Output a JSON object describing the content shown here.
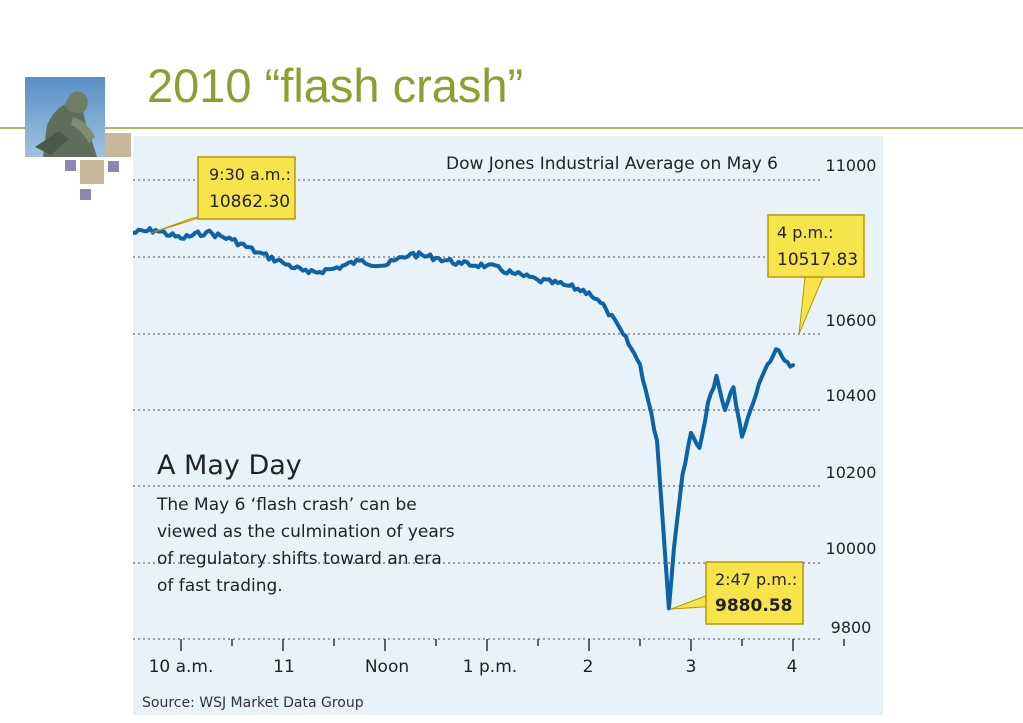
{
  "slide": {
    "title": "2010 “flash crash”",
    "colors": {
      "title": "#8ca032",
      "rule": "#a9b85a",
      "panel": "#e9f2f9",
      "line": "#0d63a8",
      "callout": "#f7e34a"
    }
  },
  "logo": {
    "icon": "statue-photo-icon"
  },
  "chart_data": {
    "type": "line",
    "title": "Dow Jones Industrial Average on May 6",
    "x_tick_labels": [
      "10 a.m.",
      "11",
      "Noon",
      "1 p.m.",
      "2",
      "3",
      "4"
    ],
    "y_tick_labels": [
      "11000",
      "10600",
      "10400",
      "10200",
      "10000",
      "9800"
    ],
    "ylim": [
      9800,
      11000
    ],
    "grid": "horizontal dotted",
    "series": [
      {
        "values": [
          [
            "9:30",
            10862
          ],
          [
            "9:45",
            10870
          ],
          [
            "10:00",
            10848
          ],
          [
            "10:15",
            10865
          ],
          [
            "10:30",
            10845
          ],
          [
            "10:45",
            10812
          ],
          [
            "11:00",
            10785
          ],
          [
            "11:15",
            10758
          ],
          [
            "11:30",
            10770
          ],
          [
            "11:45",
            10790
          ],
          [
            "12:00",
            10778
          ],
          [
            "12:15",
            10808
          ],
          [
            "12:30",
            10798
          ],
          [
            "12:45",
            10782
          ],
          [
            "13:00",
            10778
          ],
          [
            "13:15",
            10758
          ],
          [
            "13:30",
            10740
          ],
          [
            "13:45",
            10728
          ],
          [
            "14:00",
            10708
          ],
          [
            "14:10",
            10665
          ],
          [
            "14:20",
            10600
          ],
          [
            "14:30",
            10520
          ],
          [
            "14:40",
            10320
          ],
          [
            "14:47",
            9880.58
          ],
          [
            "14:50",
            10040
          ],
          [
            "14:55",
            10230
          ],
          [
            "15:00",
            10340
          ],
          [
            "15:05",
            10300
          ],
          [
            "15:10",
            10420
          ],
          [
            "15:15",
            10490
          ],
          [
            "15:20",
            10400
          ],
          [
            "15:25",
            10460
          ],
          [
            "15:30",
            10330
          ],
          [
            "15:35",
            10400
          ],
          [
            "15:40",
            10470
          ],
          [
            "15:45",
            10520
          ],
          [
            "15:50",
            10560
          ],
          [
            "15:55",
            10530
          ],
          [
            "16:00",
            10517.83
          ]
        ]
      }
    ],
    "callouts": [
      {
        "time": "9:30 a.m.:",
        "value": "10862.30"
      },
      {
        "time": "4 p.m.:",
        "value": "10517.83"
      },
      {
        "time": "2:47 p.m.:",
        "value": "9880.58"
      }
    ],
    "annotation": {
      "heading": "A May Day",
      "lines": [
        "The May 6 ‘flash crash’ can be",
        "viewed as the culmination of years",
        "of regulatory shifts toward an era",
        "of fast trading."
      ]
    },
    "source": "Source: WSJ Market Data Group"
  }
}
